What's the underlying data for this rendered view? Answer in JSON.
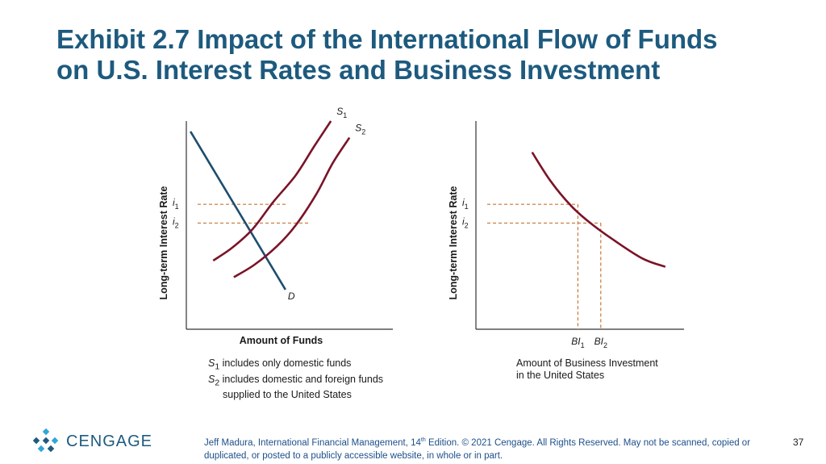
{
  "title": {
    "line1": "Exhibit 2.7 Impact of the International Flow of Funds",
    "line2": "on U.S. Interest Rates and Business Investment"
  },
  "colors": {
    "title": "#1d5a7e",
    "demand": "#1f4e6e",
    "supply": "#7a1428",
    "guide": "#c87533",
    "axis": "#333333"
  },
  "chart_data": [
    {
      "type": "line",
      "xlabel": "Amount of Funds",
      "ylabel": "Long-term Interest Rate",
      "rate_labels": [
        {
          "base": "i",
          "sub": "1"
        },
        {
          "base": "i",
          "sub": "2"
        }
      ],
      "series": [
        {
          "name": "D",
          "label": "D",
          "kind": "demand",
          "x": [
            2,
            48
          ],
          "y": [
            95,
            19
          ]
        },
        {
          "name": "S1",
          "label": {
            "base": "S",
            "sub": "1"
          },
          "kind": "supply",
          "x": [
            13,
            22,
            32,
            42,
            53,
            62,
            70
          ],
          "y": [
            33,
            39,
            48,
            61,
            74,
            88,
            100
          ]
        },
        {
          "name": "S2",
          "label": {
            "base": "S",
            "sub": "2"
          },
          "kind": "supply",
          "x": [
            23,
            33,
            44,
            53,
            63,
            71,
            79
          ],
          "y": [
            25,
            31,
            40,
            50,
            65,
            80,
            92
          ]
        }
      ],
      "equilibria": [
        {
          "label": "i1",
          "x": 49,
          "y": 60
        },
        {
          "label": "i2",
          "x": 59,
          "y": 51
        }
      ],
      "xlim": [
        0,
        100
      ],
      "ylim": [
        0,
        100
      ],
      "grid": false,
      "notes": [
        {
          "sub_base": "S",
          "sub": "1",
          "text": " includes only domestic funds"
        },
        {
          "sub_base": "S",
          "sub": "2",
          "text": " includes domestic and foreign funds"
        },
        {
          "sub_base": "",
          "sub": "",
          "text": "supplied to the United States"
        }
      ]
    },
    {
      "type": "line",
      "xlabel": "",
      "ylabel": "Long-term Interest Rate",
      "xlabel_lines": [
        "Amount of Business Investment",
        "in the United States"
      ],
      "rate_labels": [
        {
          "base": "i",
          "sub": "1"
        },
        {
          "base": "i",
          "sub": "2"
        }
      ],
      "investment_labels": [
        {
          "base": "BI",
          "sub": "1"
        },
        {
          "base": "BI",
          "sub": "2"
        }
      ],
      "series": [
        {
          "name": "Business Investment",
          "x": [
            27,
            36,
            46,
            55,
            66,
            80,
            91
          ],
          "y": [
            85,
            71,
            59,
            51,
            43,
            34,
            30
          ]
        }
      ],
      "equilibria": [
        {
          "label": "BI1",
          "x": 49,
          "y": 60
        },
        {
          "label": "BI2",
          "x": 60,
          "y": 51
        }
      ],
      "xlim": [
        0,
        100
      ],
      "ylim": [
        0,
        100
      ],
      "grid": false
    }
  ],
  "logo": {
    "text": "CENGAGE"
  },
  "footer": {
    "text_before_sup": "Jeff Madura, International Financial Management, 14",
    "sup": "th",
    "text_after_sup": " Edition. © 2021 Cengage. All Rights Reserved. May not be scanned, copied or duplicated, or posted to a publicly accessible website, in whole or in part."
  },
  "page_number": "37"
}
